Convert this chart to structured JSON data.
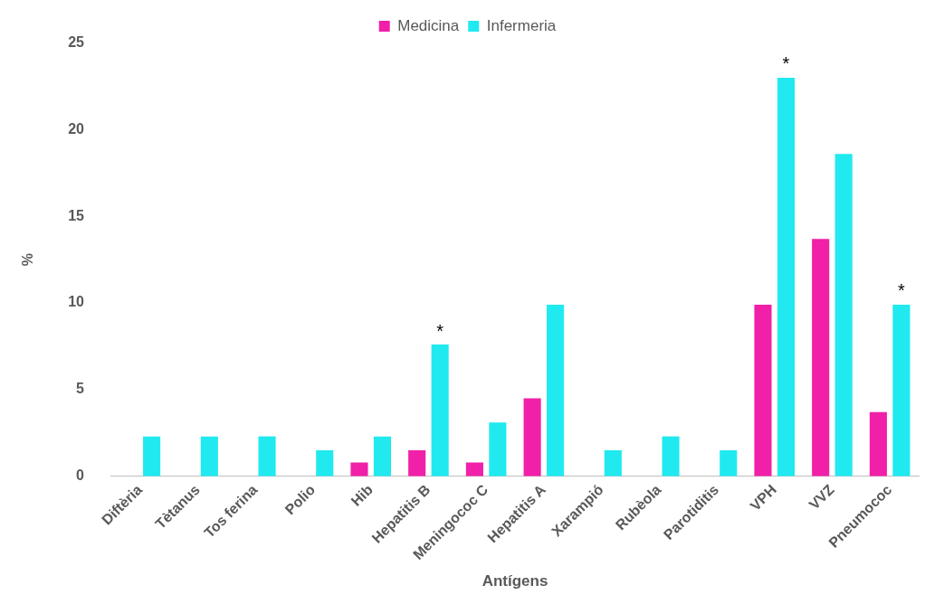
{
  "chart_data": {
    "type": "bar",
    "xlabel": "Antígens",
    "ylabel": "%",
    "categories": [
      "Diftèria",
      "Tètanus",
      "Tos ferina",
      "Polio",
      "Hib",
      "Hepatitis B",
      "Meningococ C",
      "Hepatitis A",
      "Xarampió",
      "Rubèola",
      "Parotiditis",
      "VPH",
      "VVZ",
      "Pneumococ"
    ],
    "series": [
      {
        "name": "Medicina",
        "color": "#f020a8",
        "values": [
          0,
          0,
          0,
          0,
          0.8,
          1.5,
          0.8,
          4.5,
          0,
          0,
          0,
          9.9,
          13.7,
          3.7
        ]
      },
      {
        "name": "Infermeria",
        "color": "#20eaf0",
        "values": [
          2.3,
          2.3,
          2.3,
          1.5,
          2.3,
          7.6,
          3.1,
          9.9,
          1.5,
          2.3,
          1.5,
          23.0,
          18.6,
          9.9
        ]
      }
    ],
    "ylim": [
      0,
      25
    ],
    "yticks": [
      0,
      5,
      10,
      15,
      20,
      25
    ],
    "grid": false,
    "legend": "top",
    "annotations": [
      {
        "text": "*",
        "x": "Hepatitis B",
        "y": 7.6
      },
      {
        "text": "*",
        "x": "VPH",
        "y": 23.0
      },
      {
        "text": "*",
        "x": "Pneumococ",
        "y": 9.9
      }
    ]
  }
}
